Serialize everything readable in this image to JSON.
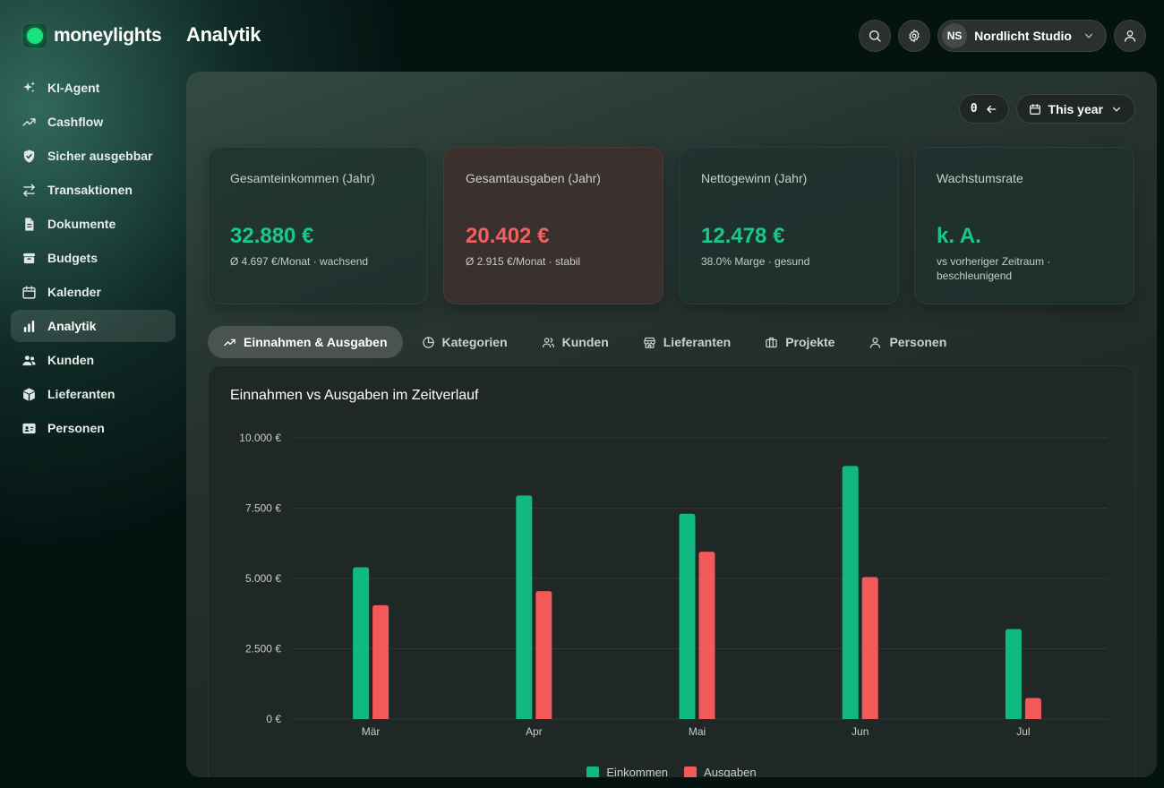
{
  "app": {
    "name": "moneylights",
    "page_title": "Analytik"
  },
  "header": {
    "org_initials": "NS",
    "org_name": "Nordlicht Studio"
  },
  "sidebar": {
    "items": [
      {
        "label": "KI-Agent",
        "icon": "sparkles-icon"
      },
      {
        "label": "Cashflow",
        "icon": "trend-up-icon"
      },
      {
        "label": "Sicher ausgebbar",
        "icon": "shield-check-icon"
      },
      {
        "label": "Transaktionen",
        "icon": "arrows-swap-icon"
      },
      {
        "label": "Dokumente",
        "icon": "document-icon"
      },
      {
        "label": "Budgets",
        "icon": "wallet-icon"
      },
      {
        "label": "Kalender",
        "icon": "calendar-icon"
      },
      {
        "label": "Analytik",
        "icon": "bar-chart-icon",
        "active": true
      },
      {
        "label": "Kunden",
        "icon": "users-icon"
      },
      {
        "label": "Lieferanten",
        "icon": "package-icon"
      },
      {
        "label": "Personen",
        "icon": "id-card-icon"
      }
    ]
  },
  "filters": {
    "reset_label": "0",
    "period_label": "This year"
  },
  "kpis": [
    {
      "label": "Gesamteinkommen (Jahr)",
      "value": "32.880 €",
      "sub": "Ø 4.697 €/Monat · wachsend",
      "tone": "green"
    },
    {
      "label": "Gesamtausgaben (Jahr)",
      "value": "20.402 €",
      "sub": "Ø 2.915 €/Monat · stabil",
      "tone": "red"
    },
    {
      "label": "Nettogewinn (Jahr)",
      "value": "12.478 €",
      "sub": "38.0% Marge · gesund",
      "tone": "green"
    },
    {
      "label": "Wachstumsrate",
      "value": "k. A.",
      "sub": "vs vorheriger Zeitraum · beschleunigend",
      "tone": "green"
    }
  ],
  "tabs": [
    {
      "label": "Einnahmen & Ausgaben",
      "icon": "trend-up-icon",
      "active": true
    },
    {
      "label": "Kategorien",
      "icon": "pie-chart-icon"
    },
    {
      "label": "Kunden",
      "icon": "users-icon"
    },
    {
      "label": "Lieferanten",
      "icon": "store-icon"
    },
    {
      "label": "Projekte",
      "icon": "briefcase-icon"
    },
    {
      "label": "Personen",
      "icon": "user-icon"
    }
  ],
  "colors": {
    "income": "#10b981",
    "expense": "#f25a5a",
    "accent": "#19e27c"
  },
  "chart_data": {
    "type": "bar",
    "title": "Einnahmen vs Ausgaben im Zeitverlauf",
    "xlabel": "",
    "ylabel": "",
    "categories": [
      "Mär",
      "Apr",
      "Mai",
      "Jun",
      "Jul"
    ],
    "series": [
      {
        "name": "Einkommen",
        "values": [
          5400,
          7950,
          7300,
          9000,
          3200
        ]
      },
      {
        "name": "Ausgaben",
        "values": [
          4050,
          4550,
          5950,
          5050,
          750
        ]
      }
    ],
    "ylim": [
      0,
      10000
    ],
    "yticks": [
      0,
      2500,
      5000,
      7500,
      10000
    ],
    "ytick_labels": [
      "0 €",
      "2.500 €",
      "5.000 €",
      "7.500 €",
      "10.000 €"
    ],
    "grid": true,
    "legend": "bottom"
  }
}
